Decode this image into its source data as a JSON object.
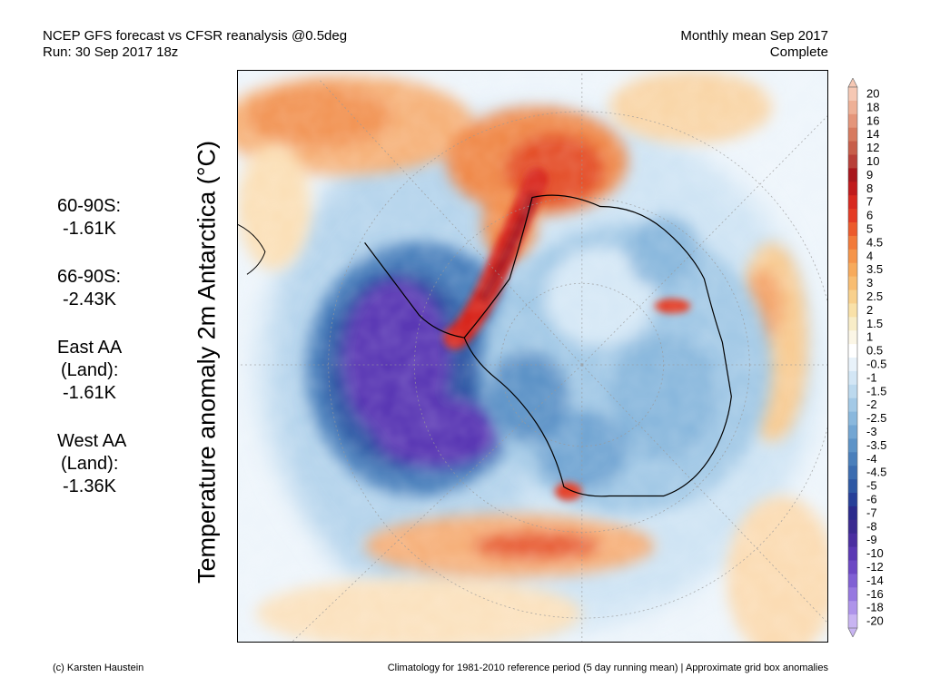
{
  "header": {
    "left_line1": "NCEP GFS forecast vs CFSR reanalysis @0.5deg",
    "left_line2": "Run: 30 Sep 2017 18z",
    "right_line1": "Monthly mean Sep 2017",
    "right_line2": "Complete"
  },
  "stats": [
    {
      "label": "60-90S:",
      "value": "-1.61K"
    },
    {
      "label": "66-90S:",
      "value": "-2.43K"
    },
    {
      "label": "East AA\n(Land):",
      "label_line1": "East AA",
      "label_line2": "(Land):",
      "value": "-1.61K"
    },
    {
      "label_line1": "West AA",
      "label_line2": "(Land):",
      "value": "-1.36K"
    }
  ],
  "vertical_title": "Temperature anomaly 2m Antarctica (°C)",
  "colorbar": {
    "labels": [
      "20",
      "18",
      "16",
      "14",
      "12",
      "10",
      "9",
      "8",
      "7",
      "6",
      "5",
      "4.5",
      "4",
      "3.5",
      "3",
      "2.5",
      "2",
      "1.5",
      "1",
      "0.5",
      "-0.5",
      "-1",
      "-1.5",
      "-2",
      "-2.5",
      "-3",
      "-3.5",
      "-4",
      "-4.5",
      "-5",
      "-6",
      "-7",
      "-8",
      "-9",
      "-10",
      "-12",
      "-14",
      "-16",
      "-18",
      "-20"
    ],
    "colors": [
      "#f6c8b4",
      "#eeb096",
      "#e4957a",
      "#d77a5f",
      "#c75e4a",
      "#b83f38",
      "#a8161c",
      "#c01a1c",
      "#d8281f",
      "#e43a24",
      "#ec5a2c",
      "#f27a3a",
      "#f5944a",
      "#f7aa5c",
      "#f8bd72",
      "#f8d08c",
      "#f9e1a8",
      "#f8edc8",
      "#fbf6e6",
      "#ffffff",
      "#e8f2fa",
      "#d3e6f5",
      "#bcd9ee",
      "#a3c9e6",
      "#8ab8dd",
      "#73a6d3",
      "#5d93c7",
      "#4a7fbb",
      "#3b6cb0",
      "#2e58a4",
      "#263f98",
      "#2a2a8c",
      "#3a2a90",
      "#4a2ea0",
      "#5a38b4",
      "#6c48c4",
      "#8060d4",
      "#9678e0",
      "#ae94ea",
      "#c8b4f2"
    ]
  },
  "footer": {
    "left": "(c) Karsten Haustein",
    "right": "Climatology for 1981-2010 reference period (5 day running mean) | Approximate grid box anomalies"
  },
  "map": {
    "region": "Antarctica",
    "projection": "polar stereographic",
    "colors": {
      "warm_strong": "#c8201c",
      "warm": "#f07a3a",
      "warm_light": "#f8c890",
      "neutral": "#f4f8fc",
      "cool_light": "#bcd9ee",
      "cool": "#5d93c7",
      "cold": "#2e58a4",
      "very_cold": "#5a38b4"
    }
  }
}
